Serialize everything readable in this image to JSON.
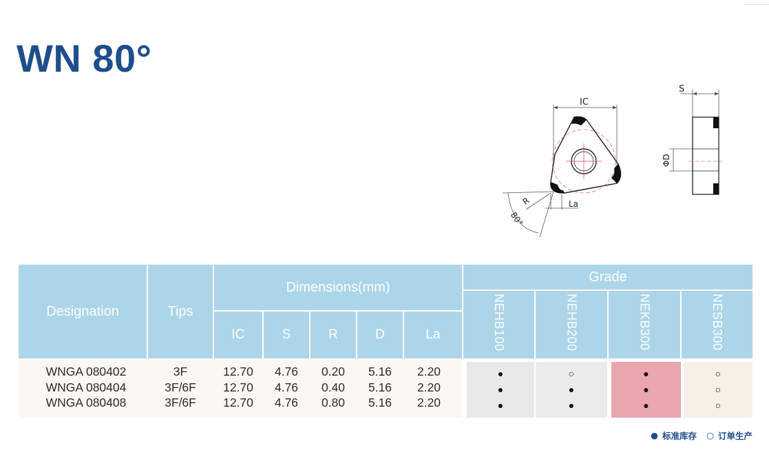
{
  "title": "WN 80°",
  "drawing": {
    "labels": {
      "ic": "IC",
      "s": "S",
      "phid": "ΦD",
      "r": "R",
      "la": "La",
      "angle": "80°"
    }
  },
  "table": {
    "headers": {
      "designation": "Designation",
      "tips": "Tips",
      "dimensions": "Dimensions(mm)",
      "dims": [
        "IC",
        "S",
        "R",
        "D",
        "La"
      ],
      "grade": "Grade",
      "grades": [
        "NEHB100",
        "NEHB200",
        "NEKB300",
        "NESB300"
      ]
    },
    "rows": [
      {
        "designation": "WNGA 080402",
        "tips": "3F",
        "ic": "12.70",
        "s": "4.76",
        "r": "0.20",
        "d": "5.16",
        "la": "2.20",
        "grades": [
          "●",
          "○",
          "●",
          "○"
        ]
      },
      {
        "designation": "WNGA 080404",
        "tips": "3F/6F",
        "ic": "12.70",
        "s": "4.76",
        "r": "0.40",
        "d": "5.16",
        "la": "2.20",
        "grades": [
          "●",
          "●",
          "●",
          "○"
        ]
      },
      {
        "designation": "WNGA 080408",
        "tips": "3F/6F",
        "ic": "12.70",
        "s": "4.76",
        "r": "0.80",
        "d": "5.16",
        "la": "2.20",
        "grades": [
          "●",
          "●",
          "●",
          "○"
        ]
      }
    ],
    "grade_colors": [
      "#e9e9e9",
      "#ebebeb",
      "#e9a6ad",
      "#f8efe6"
    ]
  },
  "legend": [
    {
      "symbol": "●",
      "label": "标准库存"
    },
    {
      "symbol": "○",
      "label": "订单生产"
    }
  ]
}
